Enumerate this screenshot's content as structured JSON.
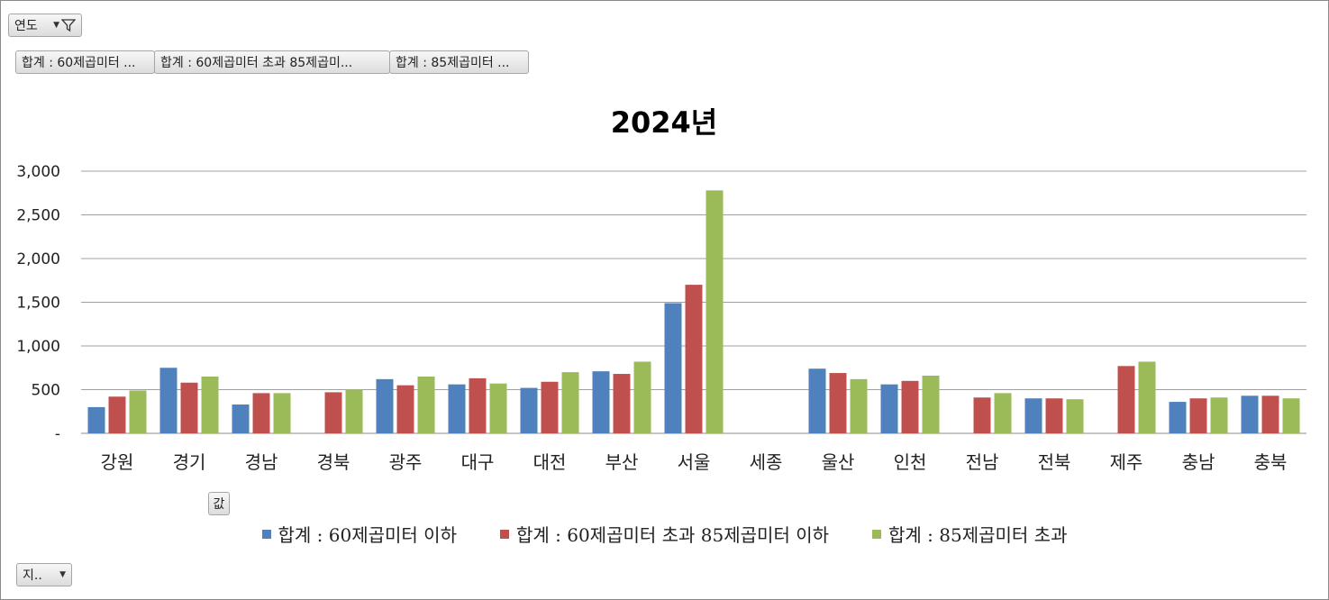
{
  "filters": {
    "year_field": "연도",
    "value_fields": [
      "합계 : 60제곱미터 ...",
      "합계 : 60제곱미터 초과 85제곱미...",
      "합계 : 85제곱미터 ..."
    ],
    "values_button": "값",
    "axis_field": "지.."
  },
  "colors": {
    "series1": "#4f81bd",
    "series2": "#c0504d",
    "series3": "#9bbb59"
  },
  "chart_data": {
    "type": "bar",
    "title": "2024년",
    "categories": [
      "강원",
      "경기",
      "경남",
      "경북",
      "광주",
      "대구",
      "대전",
      "부산",
      "서울",
      "세종",
      "울산",
      "인천",
      "전남",
      "전북",
      "제주",
      "충남",
      "충북"
    ],
    "series": [
      {
        "name": "합계 : 60제곱미터 이하",
        "values": [
          300,
          750,
          330,
          null,
          620,
          560,
          520,
          710,
          1490,
          null,
          740,
          560,
          null,
          400,
          null,
          360,
          430
        ]
      },
      {
        "name": "합계 : 60제곱미터 초과 85제곱미터 이하",
        "values": [
          420,
          580,
          460,
          470,
          550,
          630,
          590,
          680,
          1700,
          null,
          690,
          600,
          410,
          400,
          770,
          400,
          430
        ]
      },
      {
        "name": "합계 : 85제곱미터 초과",
        "values": [
          490,
          650,
          460,
          500,
          650,
          570,
          700,
          820,
          2780,
          null,
          620,
          660,
          460,
          390,
          820,
          410,
          400
        ]
      }
    ],
    "ylim": [
      0,
      3000
    ],
    "yticks": [
      "-",
      "500",
      "1,000",
      "1,500",
      "2,000",
      "2,500",
      "3,000"
    ],
    "grid": true,
    "legend_position": "bottom"
  }
}
